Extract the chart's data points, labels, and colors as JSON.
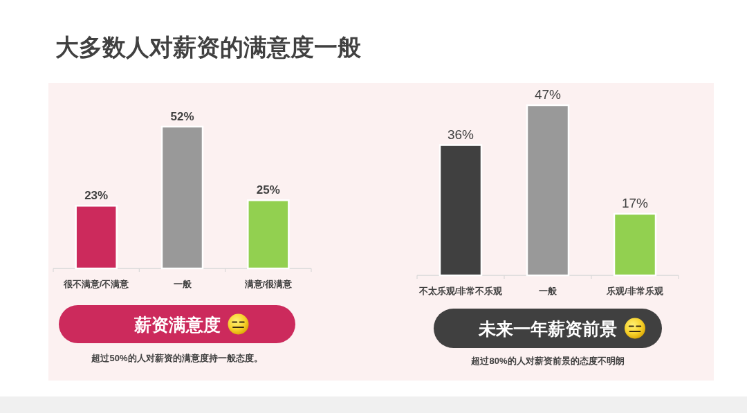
{
  "chart_data": [
    {
      "type": "bar",
      "title": "大多数人对薪资的满意度一般",
      "subtitle": "薪资满意度",
      "categories": [
        "很不满意/不满意",
        "一般",
        "满意/很满意"
      ],
      "values": [
        23,
        52,
        25
      ],
      "value_labels": [
        "23%",
        "52%",
        "25%"
      ],
      "colors": [
        "#cc2a5c",
        "#999999",
        "#92d050"
      ],
      "annotations": [
        "超过50%的人对薪资的满意度持一般态度。"
      ]
    },
    {
      "type": "bar",
      "subtitle": "未来一年薪资前景",
      "categories": [
        "不太乐观/非常不乐观",
        "一般",
        "乐观/非常乐观"
      ],
      "values": [
        36,
        47,
        17
      ],
      "value_labels": [
        "36%",
        "47%",
        "17%"
      ],
      "colors": [
        "#404040",
        "#999999",
        "#92d050"
      ],
      "annotations": [
        "超过80%的人对薪资前景的态度不明朗"
      ]
    }
  ]
}
